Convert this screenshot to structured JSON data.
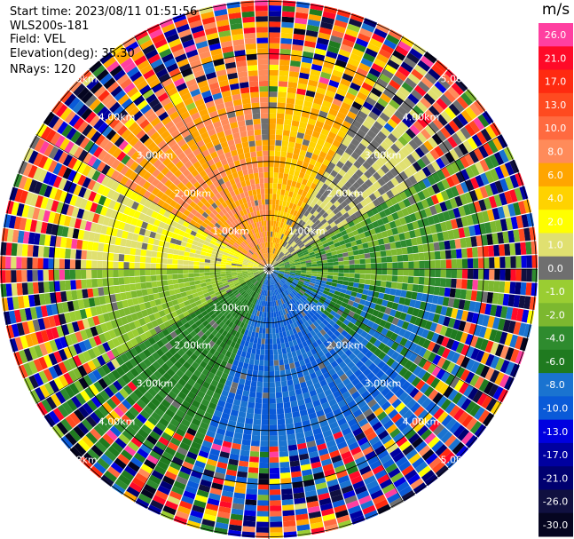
{
  "header": {
    "start_time": "Start time: 2023/08/11 01:51:56",
    "station": "WLS200s-181",
    "field": "Field: VEL",
    "elevation": "Elevation(deg): 35.30",
    "nrays": "NRays: 120"
  },
  "colorbar": {
    "unit": "m/s",
    "levels": [
      {
        "label": "26.0",
        "color": "#ff3fa0"
      },
      {
        "label": "21.0",
        "color": "#ff0a28"
      },
      {
        "label": "17.0",
        "color": "#ff2a10"
      },
      {
        "label": "13.0",
        "color": "#ff4a20"
      },
      {
        "label": "10.0",
        "color": "#ff6a40"
      },
      {
        "label": "8.0",
        "color": "#ff8b5a"
      },
      {
        "label": "6.0",
        "color": "#ffa500"
      },
      {
        "label": "4.0",
        "color": "#ffd200"
      },
      {
        "label": "2.0",
        "color": "#ffff00"
      },
      {
        "label": "1.0",
        "color": "#e0e070"
      },
      {
        "label": "0.0",
        "color": "#6f6f6f"
      },
      {
        "label": "-1.0",
        "color": "#9acd32"
      },
      {
        "label": "-2.0",
        "color": "#7cb82f"
      },
      {
        "label": "-4.0",
        "color": "#2e8b2e"
      },
      {
        "label": "-6.0",
        "color": "#1f7a1f"
      },
      {
        "label": "-8.0",
        "color": "#1a73d0"
      },
      {
        "label": "-10.0",
        "color": "#0a5ad8"
      },
      {
        "label": "-13.0",
        "color": "#0000e0"
      },
      {
        "label": "-17.0",
        "color": "#0000a0"
      },
      {
        "label": "-21.0",
        "color": "#000070"
      },
      {
        "label": "-26.0",
        "color": "#101040"
      },
      {
        "label": "-30.0",
        "color": "#050520"
      }
    ]
  },
  "chart_data": {
    "type": "heatmap",
    "projection": "polar PPI",
    "field": "VEL",
    "unit": "m/s",
    "rays": 120,
    "range_rings_km": [
      1.0,
      2.0,
      3.0,
      4.0,
      5.0
    ],
    "ring_labels": [
      "1.00km",
      "2.00km",
      "3.00km",
      "4.00km",
      "5.00km"
    ],
    "max_range_km": 5.0,
    "sectors": [
      {
        "azimuth_deg": [
          300,
          360
        ],
        "velocity_ms": 8.0
      },
      {
        "azimuth_deg": [
          0,
          30
        ],
        "velocity_ms": 6.0
      },
      {
        "azimuth_deg": [
          30,
          60
        ],
        "velocity_ms": 1.0
      },
      {
        "azimuth_deg": [
          60,
          100
        ],
        "velocity_ms": -2.0
      },
      {
        "azimuth_deg": [
          100,
          130
        ],
        "velocity_ms": -6.0
      },
      {
        "azimuth_deg": [
          130,
          200
        ],
        "velocity_ms": -8.0
      },
      {
        "azimuth_deg": [
          200,
          240
        ],
        "velocity_ms": -4.0
      },
      {
        "azimuth_deg": [
          240,
          270
        ],
        "velocity_ms": -1.0
      },
      {
        "azimuth_deg": [
          270,
          300
        ],
        "velocity_ms": 2.0
      }
    ],
    "noise_beyond_km": 3.2
  }
}
